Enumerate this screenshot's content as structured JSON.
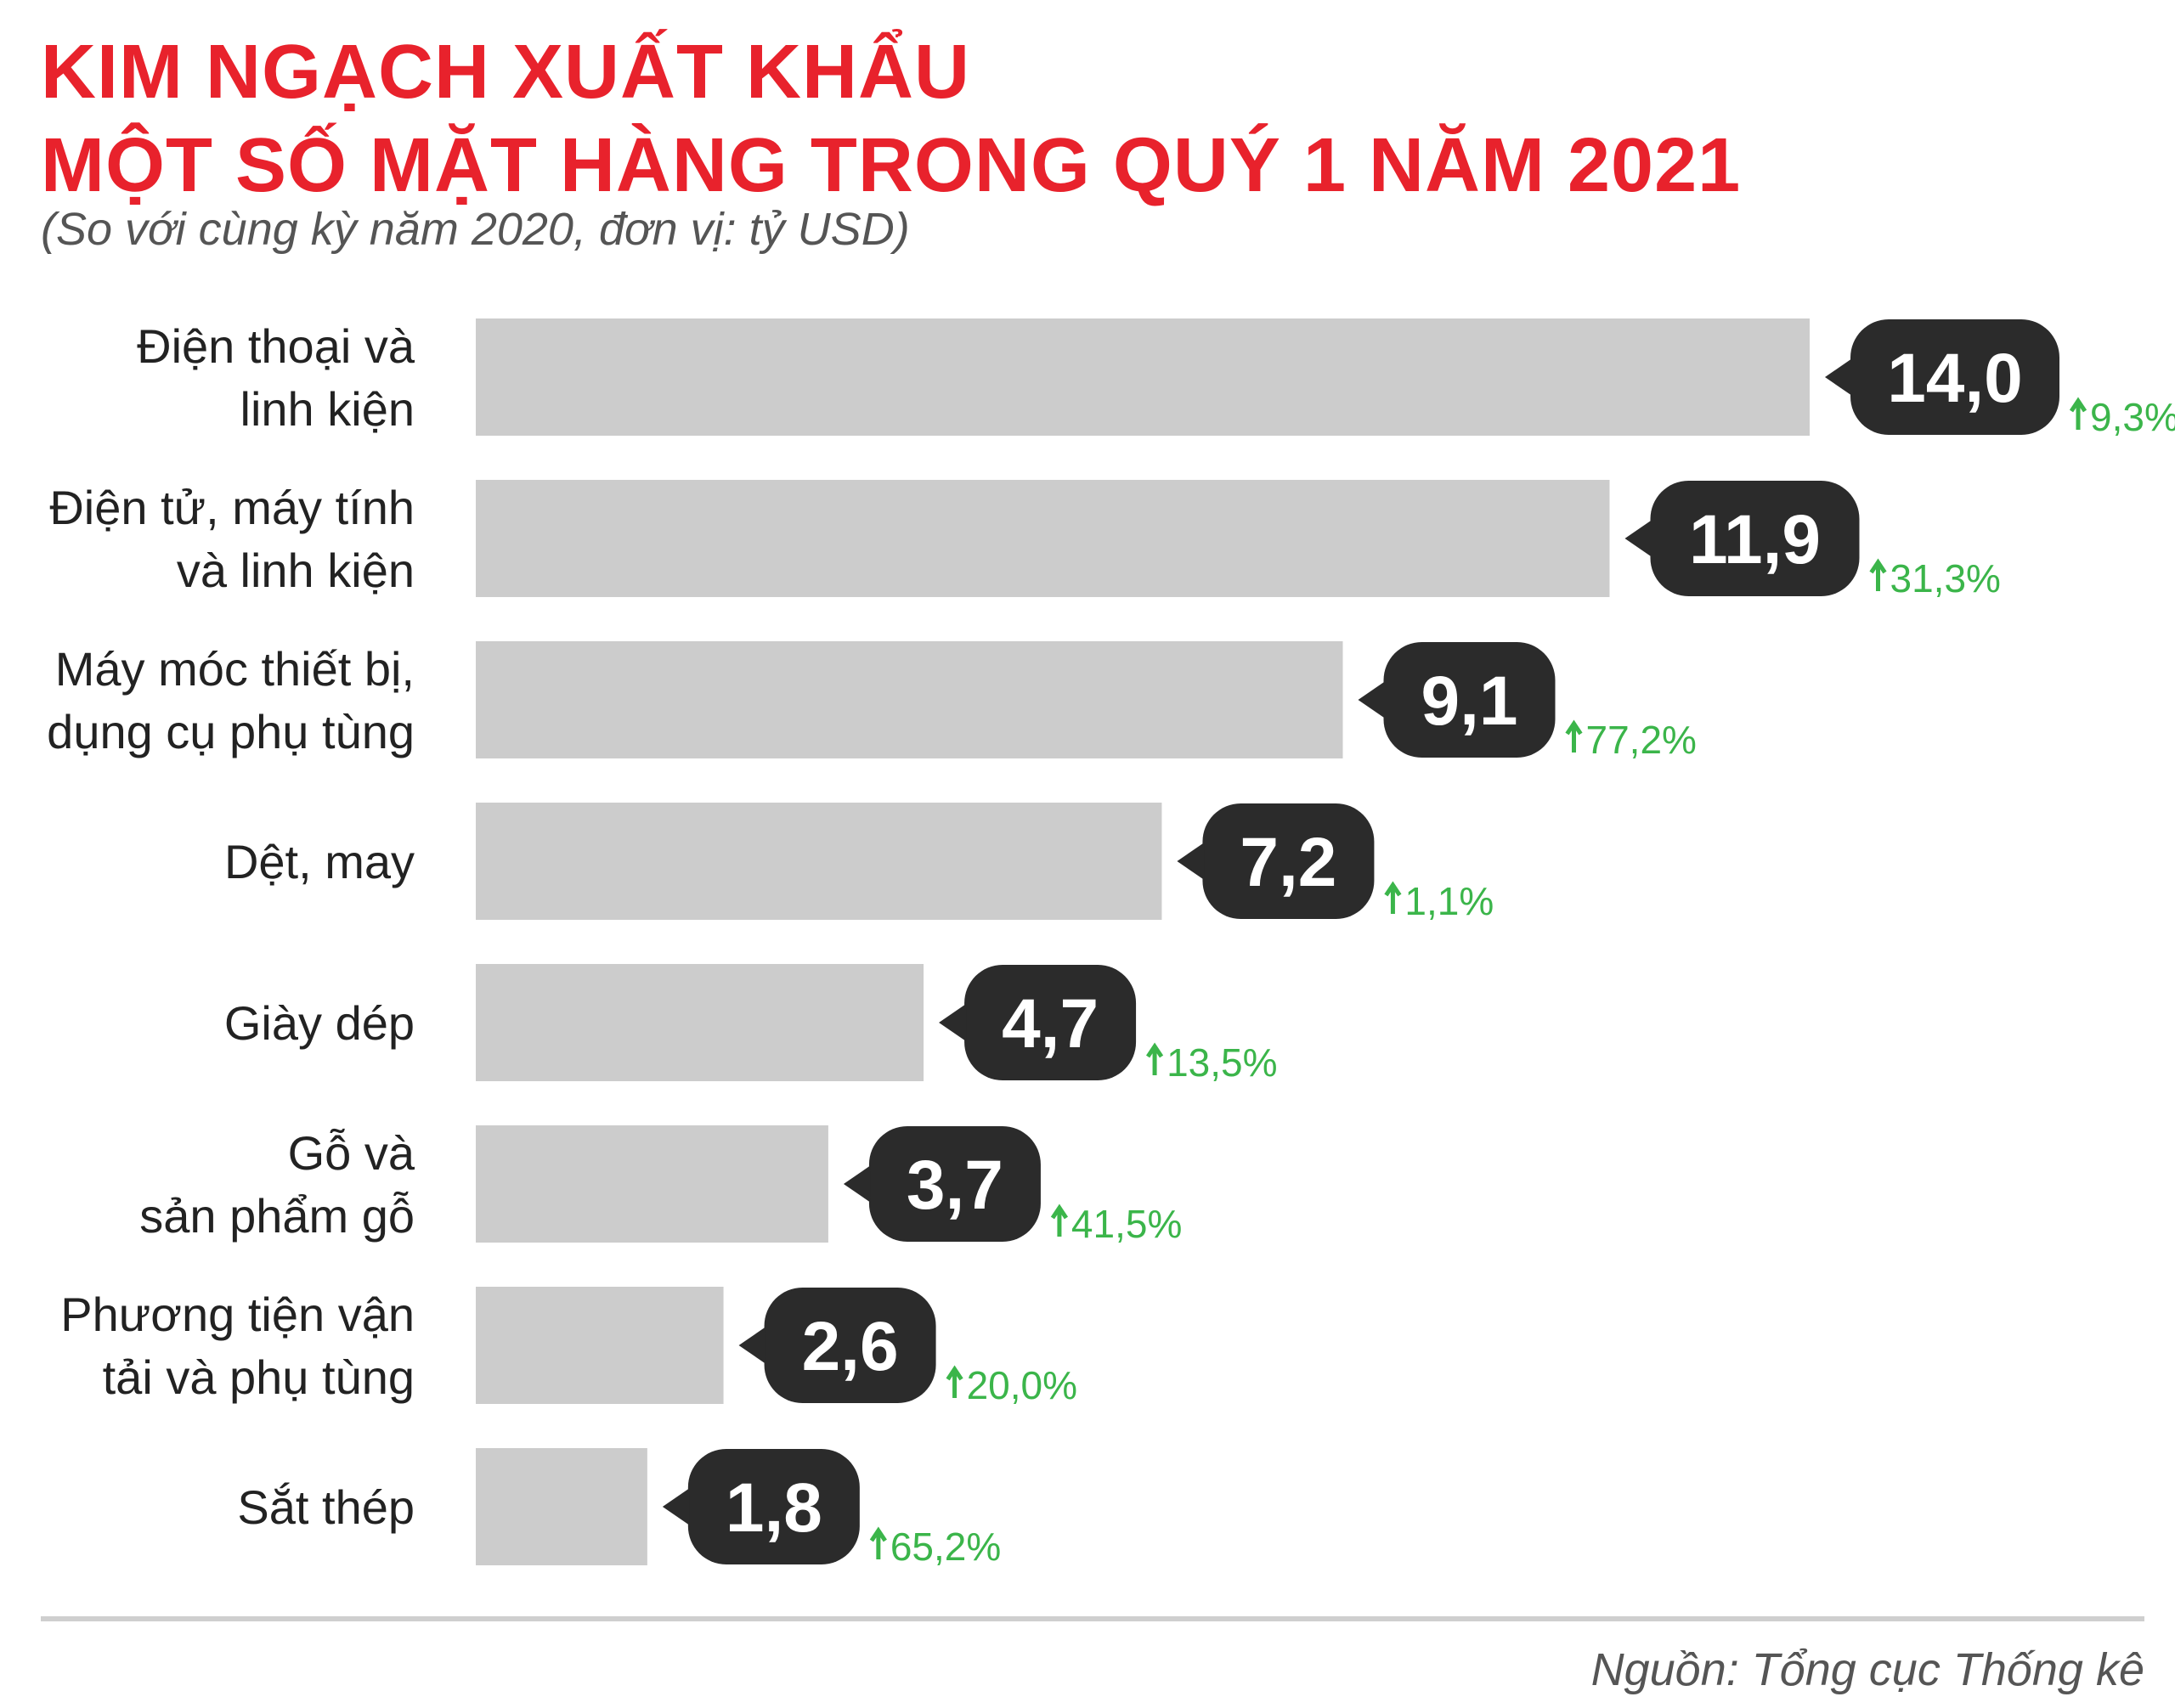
{
  "header": {
    "title_line1": "KIM NGẠCH XUẤT KHẨU",
    "title_line2": "MỘT SỐ MẶT HÀNG TRONG QUÝ 1 NĂM 2021",
    "subtitle": "(So với cùng kỳ năm 2020, đơn vị: tỷ USD)"
  },
  "footer": {
    "source": "Nguồn: Tổng cục Thống kê"
  },
  "colors": {
    "title": "#e8222c",
    "bar": "#cccccc",
    "bubble": "#2b2b2b",
    "increase": "#3bb54a"
  },
  "chart_data": {
    "type": "bar",
    "orientation": "horizontal",
    "title": "KIM NGẠCH XUẤT KHẨU MỘT SỐ MẶT HÀNG TRONG QUÝ 1 NĂM 2021",
    "subtitle": "(So với cùng kỳ năm 2020, đơn vị: tỷ USD)",
    "xlim": [
      0,
      14.0
    ],
    "grid": false,
    "items": [
      {
        "label_lines": [
          "Điện thoại và",
          "linh kiện"
        ],
        "value": 14.0,
        "value_label": "14,0",
        "change_label": "9,3%"
      },
      {
        "label_lines": [
          "Điện tử, máy tính",
          "và linh kiện"
        ],
        "value": 11.9,
        "value_label": "11,9",
        "change_label": "31,3%"
      },
      {
        "label_lines": [
          "Máy móc thiết bị,",
          "dụng cụ phụ tùng"
        ],
        "value": 9.1,
        "value_label": "9,1",
        "change_label": "77,2%"
      },
      {
        "label_lines": [
          "Dệt, may"
        ],
        "value": 7.2,
        "value_label": "7,2",
        "change_label": "1,1%"
      },
      {
        "label_lines": [
          "Giày dép"
        ],
        "value": 4.7,
        "value_label": "4,7",
        "change_label": "13,5%"
      },
      {
        "label_lines": [
          "Gỗ và",
          "sản phẩm gỗ"
        ],
        "value": 3.7,
        "value_label": "3,7",
        "change_label": "41,5%"
      },
      {
        "label_lines": [
          "Phương tiện vận",
          "tải và phụ tùng"
        ],
        "value": 2.6,
        "value_label": "2,6",
        "change_label": "20,0%"
      },
      {
        "label_lines": [
          "Sắt thép"
        ],
        "value": 1.8,
        "value_label": "1,8",
        "change_label": "65,2%"
      }
    ]
  }
}
